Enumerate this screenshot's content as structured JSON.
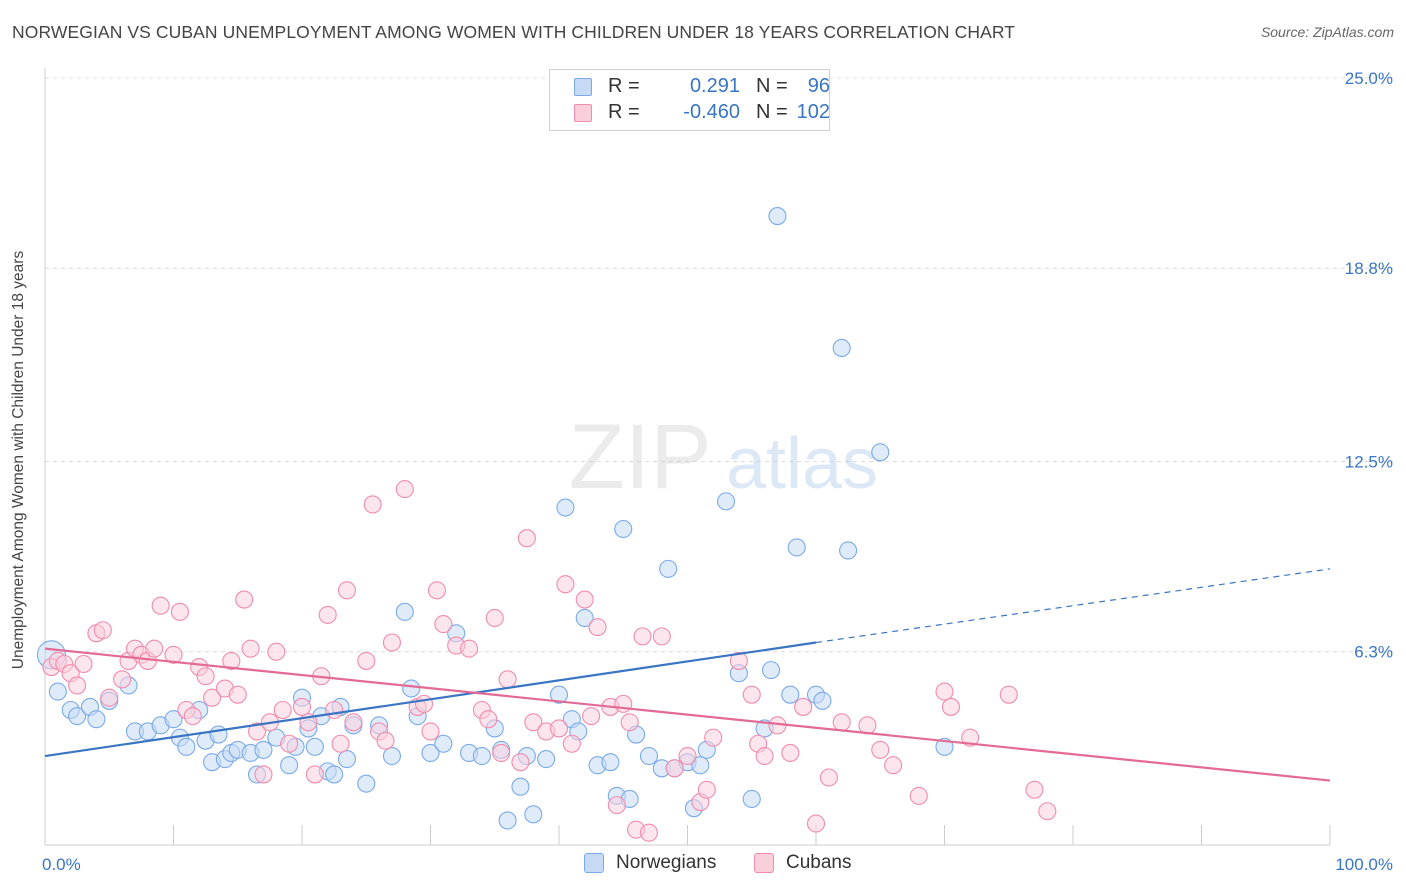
{
  "title": "NORWEGIAN VS CUBAN UNEMPLOYMENT AMONG WOMEN WITH CHILDREN UNDER 18 YEARS CORRELATION CHART",
  "source": "Source: ZipAtlas.com",
  "watermark": {
    "zip": "ZIP",
    "atlas": "atlas"
  },
  "legend": {
    "r_label": "R =",
    "n_label": "N =",
    "rows": [
      {
        "name": "Norwegians",
        "r": "0.291",
        "n": "96",
        "color": "#7aaae8",
        "fill": "#c6daf6"
      },
      {
        "name": "Cubans",
        "r": "-0.460",
        "n": "102",
        "color": "#f08cad",
        "fill": "#f9cfdc"
      }
    ]
  },
  "chart_data": {
    "type": "scatter",
    "title": "NORWEGIAN VS CUBAN UNEMPLOYMENT AMONG WOMEN WITH CHILDREN UNDER 18 YEARS CORRELATION CHART",
    "xlabel": "",
    "ylabel": "Unemployment Among Women with Children Under 18 years",
    "xlim": [
      0,
      100
    ],
    "ylim": [
      0,
      25
    ],
    "x_tick_labels": [
      "0.0%",
      "100.0%"
    ],
    "y_ticks": [
      6.3,
      12.5,
      18.8,
      25.0
    ],
    "y_tick_labels": [
      "6.3%",
      "12.5%",
      "18.8%",
      "25.0%"
    ],
    "grid": "horizontal dashed",
    "series": [
      {
        "name": "Norwegians",
        "color": "#3a75c4",
        "trend": {
          "x": [
            0,
            60
          ],
          "y": [
            2.9,
            6.6
          ],
          "dashed_extension_to": [
            100,
            9.0
          ]
        },
        "points": [
          [
            0.5,
            6.2
          ],
          [
            1,
            5.0
          ],
          [
            2,
            4.4
          ],
          [
            2.5,
            4.2
          ],
          [
            3.5,
            4.5
          ],
          [
            4,
            4.1
          ],
          [
            5,
            4.7
          ],
          [
            6.5,
            5.2
          ],
          [
            7,
            3.7
          ],
          [
            8,
            3.7
          ],
          [
            9,
            3.9
          ],
          [
            10,
            4.1
          ],
          [
            10.5,
            3.5
          ],
          [
            11,
            3.2
          ],
          [
            12,
            4.4
          ],
          [
            12.5,
            3.4
          ],
          [
            13,
            2.7
          ],
          [
            13.5,
            3.6
          ],
          [
            14,
            2.8
          ],
          [
            14.5,
            3.0
          ],
          [
            15,
            3.1
          ],
          [
            16,
            3.0
          ],
          [
            16.5,
            2.3
          ],
          [
            17,
            3.1
          ],
          [
            18,
            3.5
          ],
          [
            19,
            2.6
          ],
          [
            19.5,
            3.2
          ],
          [
            20,
            4.8
          ],
          [
            20.5,
            3.8
          ],
          [
            21,
            3.2
          ],
          [
            21.5,
            4.2
          ],
          [
            22,
            2.4
          ],
          [
            22.5,
            2.3
          ],
          [
            23,
            4.5
          ],
          [
            23.5,
            2.8
          ],
          [
            24,
            3.9
          ],
          [
            25,
            2.0
          ],
          [
            26,
            3.9
          ],
          [
            27,
            2.9
          ],
          [
            28,
            7.6
          ],
          [
            28.5,
            5.1
          ],
          [
            29,
            4.2
          ],
          [
            30,
            3.0
          ],
          [
            31,
            3.3
          ],
          [
            32,
            6.9
          ],
          [
            33,
            3.0
          ],
          [
            34,
            2.9
          ],
          [
            35,
            3.8
          ],
          [
            35.5,
            3.1
          ],
          [
            36,
            0.8
          ],
          [
            37,
            1.9
          ],
          [
            37.5,
            2.9
          ],
          [
            38,
            1.0
          ],
          [
            39,
            2.8
          ],
          [
            40,
            4.9
          ],
          [
            40.5,
            11.0
          ],
          [
            41,
            4.1
          ],
          [
            41.5,
            3.7
          ],
          [
            42,
            7.4
          ],
          [
            43,
            2.6
          ],
          [
            44,
            2.7
          ],
          [
            44.5,
            1.6
          ],
          [
            45,
            10.3
          ],
          [
            45.5,
            1.5
          ],
          [
            46,
            3.6
          ],
          [
            47,
            2.9
          ],
          [
            48,
            2.5
          ],
          [
            48.5,
            9.0
          ],
          [
            49,
            2.5
          ],
          [
            50,
            2.7
          ],
          [
            50.5,
            1.2
          ],
          [
            51,
            2.6
          ],
          [
            51.5,
            3.1
          ],
          [
            53,
            11.2
          ],
          [
            54,
            5.6
          ],
          [
            55,
            1.5
          ],
          [
            56,
            3.8
          ],
          [
            56.5,
            5.7
          ],
          [
            57,
            20.5
          ],
          [
            58,
            4.9
          ],
          [
            58.5,
            9.7
          ],
          [
            60,
            4.9
          ],
          [
            60.5,
            4.7
          ],
          [
            62,
            16.2
          ],
          [
            62.5,
            9.6
          ],
          [
            65,
            12.8
          ],
          [
            70,
            3.2
          ]
        ]
      },
      {
        "name": "Cubans",
        "color": "#e36a95",
        "trend": {
          "x": [
            0,
            100
          ],
          "y": [
            6.4,
            2.1
          ]
        },
        "points": [
          [
            0.5,
            5.8
          ],
          [
            1,
            6.0
          ],
          [
            1.5,
            5.9
          ],
          [
            2,
            5.6
          ],
          [
            2.5,
            5.2
          ],
          [
            3,
            5.9
          ],
          [
            4,
            6.9
          ],
          [
            4.5,
            7.0
          ],
          [
            5,
            4.8
          ],
          [
            6,
            5.4
          ],
          [
            6.5,
            6.0
          ],
          [
            7,
            6.4
          ],
          [
            7.5,
            6.2
          ],
          [
            8,
            6.0
          ],
          [
            8.5,
            6.4
          ],
          [
            9,
            7.8
          ],
          [
            10,
            6.2
          ],
          [
            10.5,
            7.6
          ],
          [
            11,
            4.4
          ],
          [
            11.5,
            4.2
          ],
          [
            12,
            5.8
          ],
          [
            12.5,
            5.5
          ],
          [
            13,
            4.8
          ],
          [
            14,
            5.1
          ],
          [
            14.5,
            6.0
          ],
          [
            15,
            4.9
          ],
          [
            15.5,
            8.0
          ],
          [
            16,
            6.4
          ],
          [
            16.5,
            3.7
          ],
          [
            17,
            2.3
          ],
          [
            17.5,
            4.0
          ],
          [
            18,
            6.3
          ],
          [
            18.5,
            4.4
          ],
          [
            19,
            3.3
          ],
          [
            20,
            4.5
          ],
          [
            20.5,
            4.0
          ],
          [
            21,
            2.3
          ],
          [
            21.5,
            5.5
          ],
          [
            22,
            7.5
          ],
          [
            22.5,
            4.4
          ],
          [
            23,
            3.3
          ],
          [
            23.5,
            8.3
          ],
          [
            24,
            4.0
          ],
          [
            25,
            6.0
          ],
          [
            25.5,
            11.1
          ],
          [
            26,
            3.7
          ],
          [
            26.5,
            3.4
          ],
          [
            27,
            6.6
          ],
          [
            28,
            11.6
          ],
          [
            29,
            4.5
          ],
          [
            29.5,
            4.6
          ],
          [
            30,
            3.7
          ],
          [
            30.5,
            8.3
          ],
          [
            31,
            7.2
          ],
          [
            32,
            6.5
          ],
          [
            33,
            6.4
          ],
          [
            34,
            4.4
          ],
          [
            34.5,
            4.1
          ],
          [
            35,
            7.4
          ],
          [
            35.5,
            3.0
          ],
          [
            36,
            5.4
          ],
          [
            37,
            2.7
          ],
          [
            37.5,
            10.0
          ],
          [
            38,
            4.0
          ],
          [
            39,
            3.7
          ],
          [
            40,
            3.8
          ],
          [
            40.5,
            8.5
          ],
          [
            41,
            3.3
          ],
          [
            42,
            8.0
          ],
          [
            42.5,
            4.2
          ],
          [
            43,
            7.1
          ],
          [
            44,
            4.5
          ],
          [
            44.5,
            1.3
          ],
          [
            45,
            4.6
          ],
          [
            45.5,
            4.0
          ],
          [
            46,
            0.5
          ],
          [
            46.5,
            6.8
          ],
          [
            47,
            0.4
          ],
          [
            48,
            6.8
          ],
          [
            49,
            2.5
          ],
          [
            50,
            2.9
          ],
          [
            51,
            1.4
          ],
          [
            51.5,
            1.8
          ],
          [
            52,
            3.5
          ],
          [
            54,
            6.0
          ],
          [
            55,
            4.9
          ],
          [
            55.5,
            3.3
          ],
          [
            56,
            2.9
          ],
          [
            57,
            3.9
          ],
          [
            58,
            3.0
          ],
          [
            59,
            4.5
          ],
          [
            60,
            0.7
          ],
          [
            61,
            2.2
          ],
          [
            62,
            4.0
          ],
          [
            64,
            3.9
          ],
          [
            65,
            3.1
          ],
          [
            66,
            2.6
          ],
          [
            68,
            1.6
          ],
          [
            70,
            5.0
          ],
          [
            70.5,
            4.5
          ],
          [
            72,
            3.5
          ],
          [
            75,
            4.9
          ],
          [
            77,
            1.8
          ],
          [
            78,
            1.1
          ]
        ]
      }
    ]
  }
}
